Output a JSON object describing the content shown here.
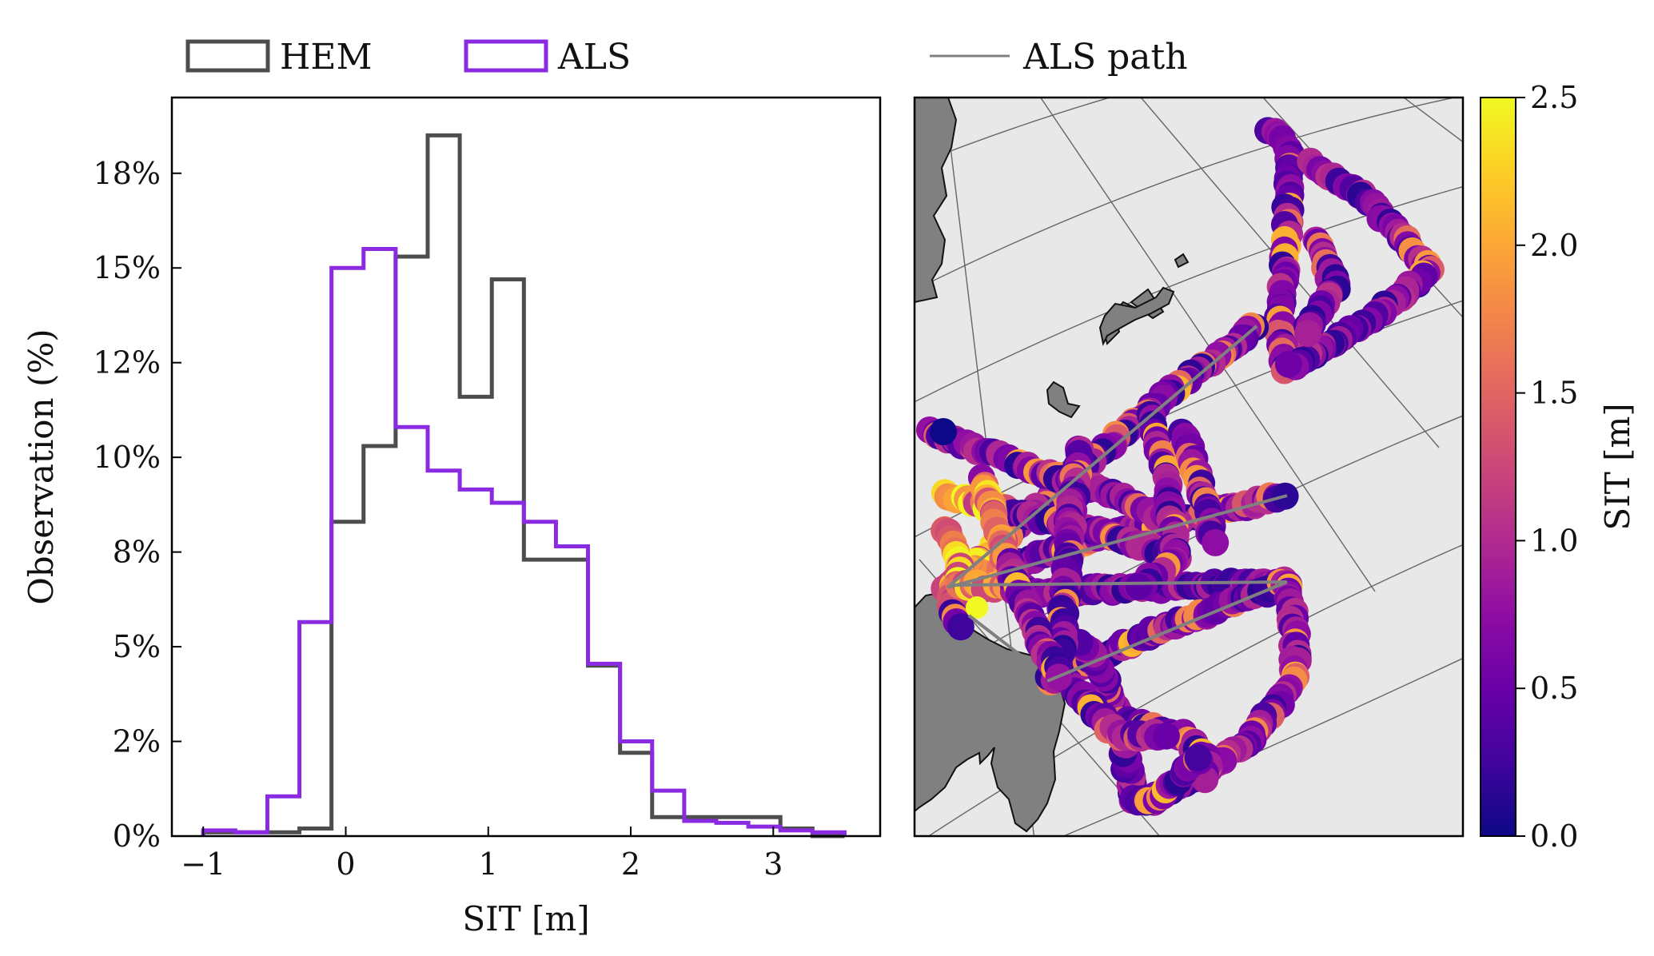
{
  "legend_left": [
    {
      "label": "HEM",
      "color": "#4d4d4d"
    },
    {
      "label": "ALS",
      "color": "#8a2be2"
    }
  ],
  "legend_right": {
    "label": "ALS path",
    "color": "#808080"
  },
  "chart_data": [
    {
      "type": "histogram",
      "xlabel": "SIT [m]",
      "ylabel": "Observation (%)",
      "xlim": [
        -1.22,
        3.75
      ],
      "ylim": [
        0,
        19.5
      ],
      "xticks": [
        -1,
        0,
        1,
        2,
        3
      ],
      "xtick_labels": [
        "−1",
        "0",
        "1",
        "2",
        "3"
      ],
      "yticks": [
        0,
        2.5,
        5,
        7.5,
        10,
        12.5,
        15,
        17.5
      ],
      "ytick_labels": [
        "0%",
        "2%",
        "5%",
        "8%",
        "10%",
        "12%",
        "15%",
        "18%"
      ],
      "bin_edges": [
        -1.0,
        -0.775,
        -0.55,
        -0.325,
        -0.1,
        0.125,
        0.35,
        0.575,
        0.8,
        1.025,
        1.25,
        1.475,
        1.7,
        1.925,
        2.15,
        2.375,
        2.6,
        2.825,
        3.05,
        3.275,
        3.5
      ],
      "series": [
        {
          "name": "HEM",
          "color": "#4d4d4d",
          "values": [
            0.1,
            0.1,
            0.1,
            0.2,
            8.3,
            10.3,
            15.3,
            18.5,
            11.6,
            14.7,
            7.3,
            7.3,
            4.5,
            2.2,
            0.5,
            0.5,
            0.5,
            0.5,
            0.2,
            0.0
          ]
        },
        {
          "name": "ALS",
          "color": "#8a2be2",
          "values": [
            0.15,
            0.1,
            1.05,
            5.65,
            15.0,
            15.5,
            10.8,
            9.65,
            9.15,
            8.8,
            8.3,
            7.65,
            4.55,
            2.5,
            1.2,
            0.4,
            0.35,
            0.25,
            0.15,
            0.1
          ]
        }
      ]
    },
    {
      "type": "scatter-map",
      "colorbar": {
        "label": "SIT [m]",
        "range": [
          0.0,
          2.5
        ],
        "ticks": [
          0.0,
          0.5,
          1.0,
          1.5,
          2.0,
          2.5
        ],
        "tick_labels": [
          "0.0",
          "0.5",
          "1.0",
          "1.5",
          "2.0",
          "2.5"
        ],
        "colormap": "plasma"
      }
    }
  ]
}
